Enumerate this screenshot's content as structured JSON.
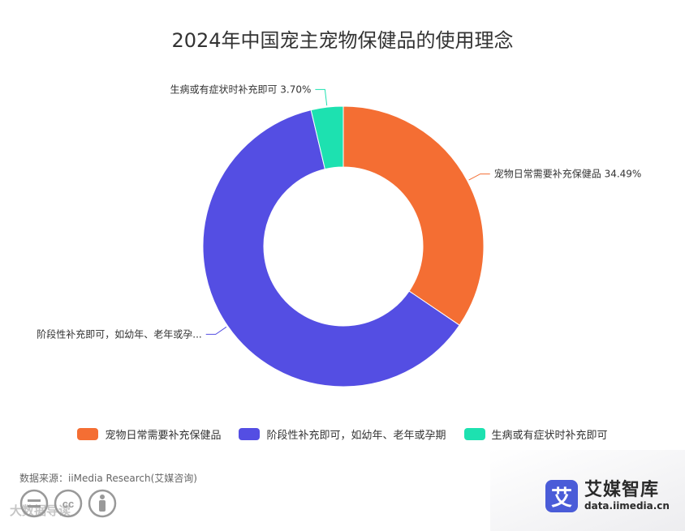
{
  "chart_data": {
    "type": "pie",
    "variant": "donut",
    "title": "2024年中国宠主宠物保健品的使用理念",
    "slices": [
      {
        "label": "宠物日常需要补充保健品",
        "value": 34.49,
        "color": "#f46e33",
        "callout": "宠物日常需要补充保健品 34.49%"
      },
      {
        "label": "阶段性补充即可，如幼年、老年或孕期",
        "value": 61.81,
        "color": "#544ee3",
        "callout": "阶段性补充即可，如幼年、老年或孕..."
      },
      {
        "label": "生病或有症状时补充即可",
        "value": 3.7,
        "color": "#1de1b0",
        "callout": "生病或有症状时补充即可 3.70%"
      }
    ],
    "legend": {
      "placement": "bottom"
    }
  },
  "footer": {
    "source": "数据来源：iiMedia Research(艾媒咨询)",
    "watermark": "大数据导读",
    "brand_logo_char": "艾",
    "brand_name": "艾媒智库",
    "brand_url": "data.iimedia.cn",
    "license_icons": [
      "equals-icon",
      "cc-icon",
      "person-icon"
    ]
  }
}
